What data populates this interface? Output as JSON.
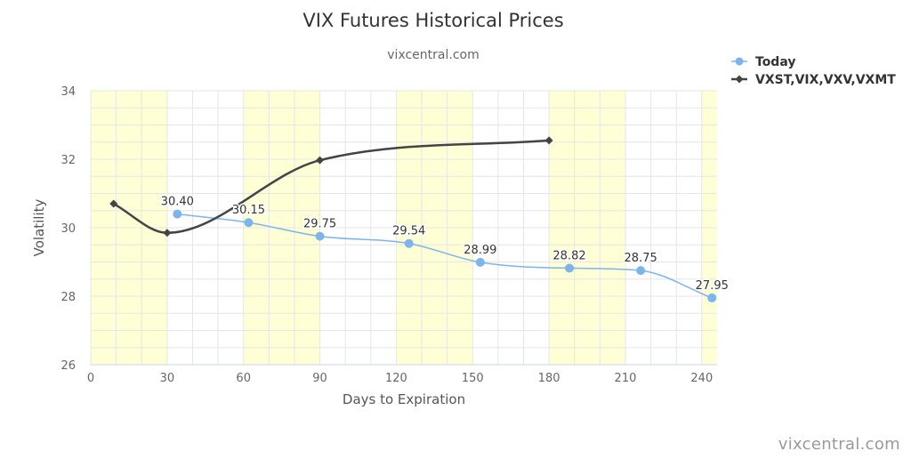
{
  "title": "VIX Futures Historical Prices",
  "subtitle": "vixcentral.com",
  "credit": "vixcentral.com",
  "colors": {
    "band": "#ffffd5",
    "today": "#7cb5ec",
    "term": "#434348",
    "grid": "#e6e6e6",
    "axis_text": "#666666",
    "title_text": "#333333"
  },
  "chart_data": {
    "type": "line",
    "xlabel": "Days to Expiration",
    "ylabel": "Volatility",
    "xlim": [
      0,
      246
    ],
    "ylim": [
      26,
      34
    ],
    "x_ticks": [
      "0",
      "30",
      "60",
      "90",
      "120",
      "150",
      "180",
      "210",
      "240"
    ],
    "y_ticks": [
      "26",
      "28",
      "30",
      "32",
      "34"
    ],
    "bands": [
      [
        0,
        30
      ],
      [
        60,
        90
      ],
      [
        120,
        150
      ],
      [
        180,
        210
      ],
      [
        240,
        246
      ]
    ],
    "grid": true,
    "legend_position": "top-right",
    "series": [
      {
        "name": "Today",
        "marker": "circle",
        "x": [
          34,
          62,
          90,
          125,
          153,
          188,
          216,
          244
        ],
        "y": [
          30.4,
          30.15,
          29.75,
          29.54,
          28.99,
          28.82,
          28.75,
          27.95
        ],
        "labels": [
          "30.40",
          "30.15",
          "29.75",
          "29.54",
          "28.99",
          "28.82",
          "28.75",
          "27.95"
        ]
      },
      {
        "name": "VXST,VIX,VXV,VXMT",
        "marker": "diamond",
        "x": [
          9,
          30,
          90,
          180
        ],
        "y": [
          30.7,
          29.85,
          31.97,
          32.55
        ]
      }
    ]
  }
}
